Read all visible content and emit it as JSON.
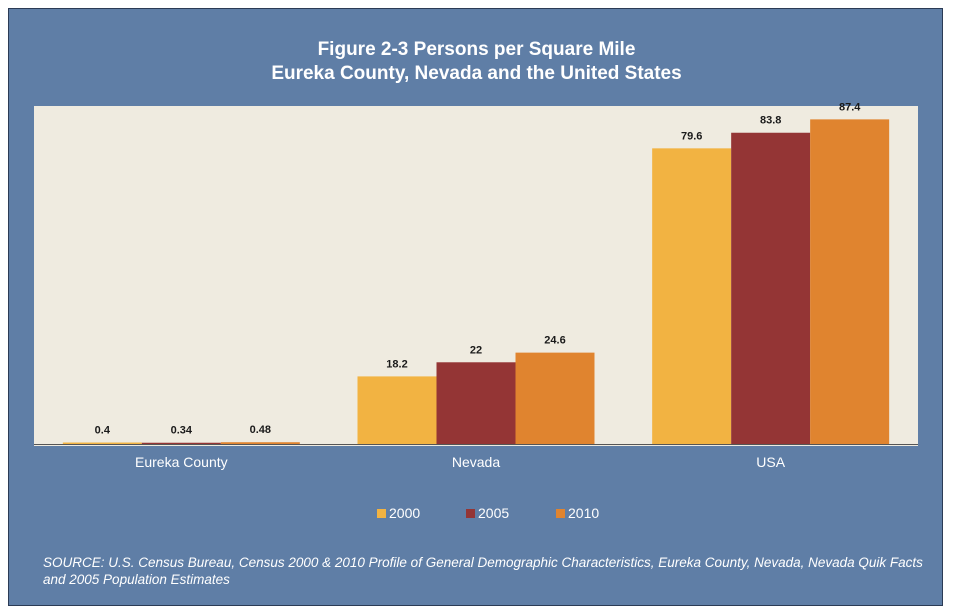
{
  "chart_data": {
    "type": "bar",
    "title": "Figure 2-3 Persons per Square Mile",
    "subtitle": "Eureka County, Nevada and the United States",
    "categories": [
      "Eureka County",
      "Nevada",
      "USA"
    ],
    "series": [
      {
        "name": "2000",
        "color": "#f2b342",
        "values": [
          0.4,
          18.2,
          79.6
        ],
        "labels": [
          "0.4",
          "18.2",
          "79.6"
        ]
      },
      {
        "name": "2005",
        "color": "#943535",
        "values": [
          0.34,
          22,
          83.8
        ],
        "labels": [
          "0.34",
          "22",
          "83.8"
        ]
      },
      {
        "name": "2010",
        "color": "#e0842f",
        "values": [
          0.48,
          24.6,
          87.4
        ],
        "labels": [
          "0.48",
          "24.6",
          "87.4"
        ]
      }
    ],
    "ylim": [
      0,
      91
    ],
    "grid": false,
    "legend_position": "bottom",
    "source": "SOURCE: U.S. Census Bureau, Census 2000 & 2010 Profile of General Demographic Characteristics, Eureka County, Nevada, Nevada Quik Facts and 2005 Population Estimates"
  },
  "colors": {
    "frame_background": "#5f7ea6",
    "plot_background": "#efebe0"
  }
}
